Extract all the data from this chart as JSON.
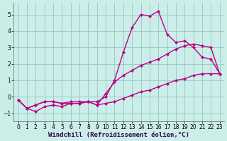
{
  "title": "",
  "xlabel": "Windchill (Refroidissement éolien,°C)",
  "ylabel": "",
  "xlim": [
    -0.5,
    23.5
  ],
  "ylim": [
    -1.5,
    5.7
  ],
  "yticks": [
    -1,
    0,
    1,
    2,
    3,
    4,
    5
  ],
  "xticks": [
    0,
    1,
    2,
    3,
    4,
    5,
    6,
    7,
    8,
    9,
    10,
    11,
    12,
    13,
    14,
    15,
    16,
    17,
    18,
    19,
    20,
    21,
    22,
    23
  ],
  "background_color": "#cceee8",
  "grid_color": "#99cccc",
  "line_color": "#bb0088",
  "line1_y": [
    -0.2,
    -0.7,
    -0.9,
    -0.6,
    -0.5,
    -0.6,
    -0.4,
    -0.4,
    -0.3,
    -0.3,
    0.0,
    1.0,
    2.7,
    4.2,
    5.0,
    4.9,
    5.2,
    3.8,
    3.3,
    3.4,
    3.0,
    2.4,
    2.3,
    1.4
  ],
  "line2_y": [
    -0.2,
    -0.7,
    -0.5,
    -0.3,
    -0.3,
    -0.4,
    -0.3,
    -0.3,
    -0.3,
    -0.5,
    0.2,
    0.9,
    1.3,
    1.6,
    1.9,
    2.1,
    2.3,
    2.6,
    2.9,
    3.1,
    3.2,
    3.1,
    3.0,
    1.4
  ],
  "line3_y": [
    -0.2,
    -0.7,
    -0.5,
    -0.3,
    -0.3,
    -0.4,
    -0.4,
    -0.4,
    -0.3,
    -0.5,
    -0.4,
    -0.3,
    -0.1,
    0.1,
    0.3,
    0.4,
    0.6,
    0.8,
    1.0,
    1.1,
    1.3,
    1.4,
    1.4,
    1.4
  ],
  "marker": "D",
  "markersize": 2.5,
  "linewidth": 1.0,
  "tick_fontsize": 5.5,
  "xlabel_fontsize": 6.5
}
